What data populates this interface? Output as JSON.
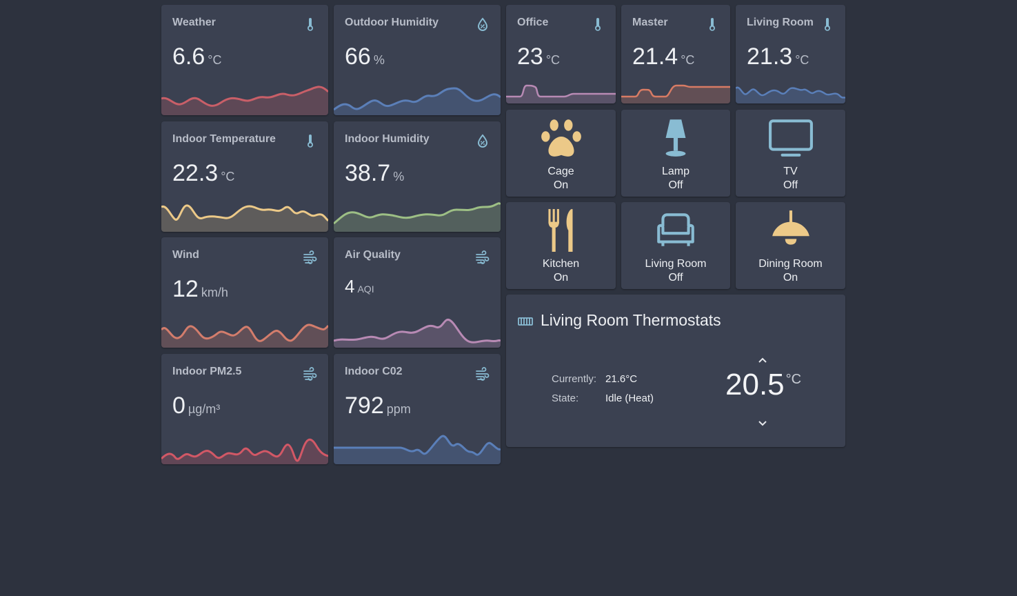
{
  "sensors": [
    {
      "title": "Weather",
      "value": "6.6",
      "unit": "°C",
      "icon": "thermometer-icon",
      "color": "#c95f68"
    },
    {
      "title": "Outdoor Humidity",
      "value": "66",
      "unit": "%",
      "icon": "water-percent-icon",
      "color": "#5b7fb8"
    },
    {
      "title": "Indoor Temperature",
      "value": "22.3",
      "unit": "°C",
      "icon": "thermometer-icon",
      "color": "#ecc988"
    },
    {
      "title": "Indoor Humidity",
      "value": "38.7",
      "unit": "%",
      "icon": "water-percent-icon",
      "color": "#9dbf85"
    },
    {
      "title": "Wind",
      "value": "12",
      "unit": "km/h",
      "icon": "weather-windy-icon",
      "color": "#d37d6c"
    },
    {
      "title": "Air Quality",
      "value": "4",
      "unit": "AQI",
      "icon": "weather-windy-icon",
      "color": "#b88ab4"
    },
    {
      "title": "Indoor PM2.5",
      "value": "0",
      "unit": "µg/m³",
      "icon": "weather-windy-icon",
      "color": "#d25866"
    },
    {
      "title": "Indoor C02",
      "value": "792",
      "unit": "ppm",
      "icon": "weather-windy-icon",
      "color": "#5a7fb9"
    }
  ],
  "rooms": [
    {
      "title": "Office",
      "value": "23",
      "unit": "°C",
      "icon": "thermometer-icon",
      "color": "#b88ab4"
    },
    {
      "title": "Master",
      "value": "21.4",
      "unit": "°C",
      "icon": "thermometer-icon",
      "color": "#d77b64"
    },
    {
      "title": "Living Room",
      "value": "21.3",
      "unit": "°C",
      "icon": "thermometer-icon",
      "color": "#5a7fb9"
    }
  ],
  "tiles": [
    {
      "name": "Cage",
      "state": "On",
      "icon": "paw-icon",
      "color": "#ecc988"
    },
    {
      "name": "Lamp",
      "state": "Off",
      "icon": "lamp-icon",
      "color": "#89bcd3"
    },
    {
      "name": "TV",
      "state": "Off",
      "icon": "television-icon",
      "color": "#89bcd3"
    },
    {
      "name": "Kitchen",
      "state": "On",
      "icon": "silverware-icon",
      "color": "#ecc988"
    },
    {
      "name": "Living Room",
      "state": "Off",
      "icon": "sofa-icon",
      "color": "#89bcd3"
    },
    {
      "name": "Dining Room",
      "state": "On",
      "icon": "ceiling-light-icon",
      "color": "#ecc988"
    }
  ],
  "thermostat": {
    "title": "Living Room Thermostats",
    "icon": "radiator-icon",
    "currently_label": "Currently:",
    "currently_value": "21.6°C",
    "state_label": "State:",
    "state_value": "Idle (Heat)",
    "target": "20.5",
    "target_unit": "°C"
  },
  "colors": {
    "background": "#2d323e",
    "card": "#3b4151",
    "accent_blue": "#89bcd3",
    "accent_yellow": "#ecc988"
  }
}
